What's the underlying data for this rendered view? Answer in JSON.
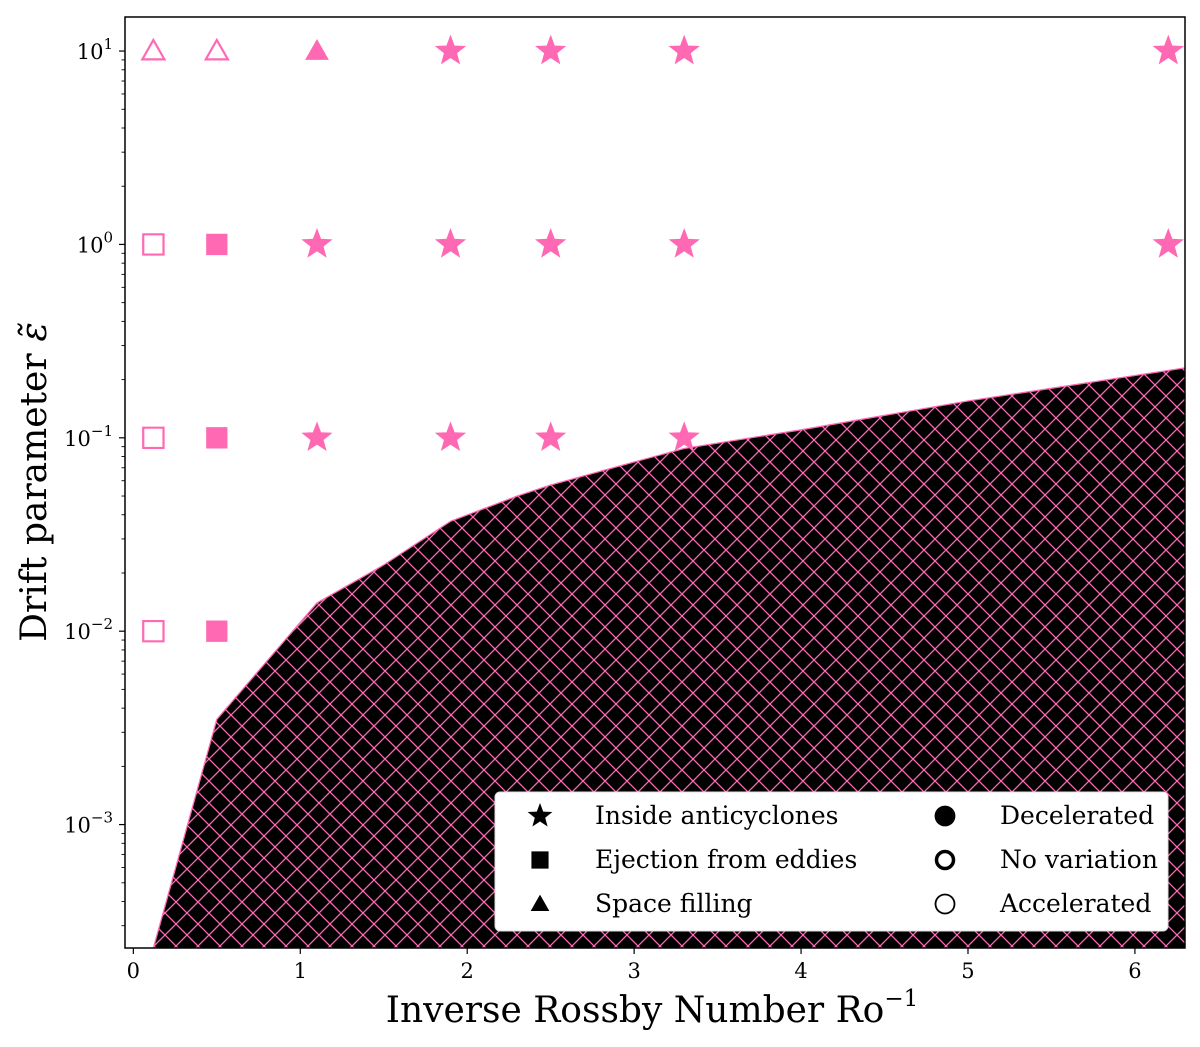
{
  "chart_data": {
    "type": "scatter",
    "xlabel": "Inverse Rossby Number Ro",
    "xlabel_sup": "−1",
    "ylabel": "Drift parameter",
    "ylabel_symbol": "ε̃",
    "xlim": [
      -0.05,
      6.3
    ],
    "ylim": [
      0.00023,
      15
    ],
    "y_scale": "log",
    "x_ticks": [
      0,
      1,
      2,
      3,
      4,
      5,
      6
    ],
    "y_ticks": [
      {
        "value": 0.001,
        "base": "10",
        "exp": "−3"
      },
      {
        "value": 0.01,
        "base": "10",
        "exp": "−2"
      },
      {
        "value": 0.1,
        "base": "10",
        "exp": "−1"
      },
      {
        "value": 1,
        "base": "10",
        "exp": "0"
      },
      {
        "value": 10,
        "base": "10",
        "exp": "1"
      }
    ],
    "grid": false,
    "marker_color": "#ff69b4",
    "region_fill": "#000000",
    "hatch_color": "#ff69b4",
    "region_boundary": [
      [
        0.12,
        0.00023
      ],
      [
        0.5,
        0.0035
      ],
      [
        1.1,
        0.014
      ],
      [
        1.5,
        0.022
      ],
      [
        1.9,
        0.037
      ],
      [
        2.3,
        0.05
      ],
      [
        2.5,
        0.057
      ],
      [
        3.0,
        0.075
      ],
      [
        3.3,
        0.088
      ],
      [
        4.0,
        0.11
      ],
      [
        5.0,
        0.155
      ],
      [
        6.3,
        0.23
      ]
    ],
    "series": [
      {
        "name": "Inside anticyclones",
        "marker": "star",
        "points": [
          {
            "x": 1.1,
            "y": 0.1,
            "fill": "filled"
          },
          {
            "x": 1.1,
            "y": 1,
            "fill": "filled"
          },
          {
            "x": 1.9,
            "y": 0.1,
            "fill": "filled"
          },
          {
            "x": 1.9,
            "y": 1,
            "fill": "filled"
          },
          {
            "x": 1.9,
            "y": 10,
            "fill": "filled"
          },
          {
            "x": 2.5,
            "y": 0.1,
            "fill": "filled"
          },
          {
            "x": 2.5,
            "y": 1,
            "fill": "filled"
          },
          {
            "x": 2.5,
            "y": 10,
            "fill": "filled"
          },
          {
            "x": 3.3,
            "y": 0.1,
            "fill": "filled"
          },
          {
            "x": 3.3,
            "y": 1,
            "fill": "filled"
          },
          {
            "x": 3.3,
            "y": 10,
            "fill": "filled"
          },
          {
            "x": 6.2,
            "y": 1,
            "fill": "filled"
          },
          {
            "x": 6.2,
            "y": 10,
            "fill": "filled"
          }
        ]
      },
      {
        "name": "Ejection from eddies",
        "marker": "square",
        "points": [
          {
            "x": 0.12,
            "y": 0.01,
            "fill": "open"
          },
          {
            "x": 0.12,
            "y": 0.1,
            "fill": "open"
          },
          {
            "x": 0.12,
            "y": 1,
            "fill": "open"
          },
          {
            "x": 0.5,
            "y": 0.01,
            "fill": "filled"
          },
          {
            "x": 0.5,
            "y": 0.1,
            "fill": "filled"
          },
          {
            "x": 0.5,
            "y": 1,
            "fill": "filled"
          }
        ]
      },
      {
        "name": "Space filling",
        "marker": "triangle",
        "points": [
          {
            "x": 0.12,
            "y": 10,
            "fill": "open"
          },
          {
            "x": 0.5,
            "y": 10,
            "fill": "open"
          },
          {
            "x": 1.1,
            "y": 10,
            "fill": "filled"
          }
        ]
      }
    ],
    "legend": {
      "placement": "lower-right",
      "columns": [
        [
          {
            "marker": "star",
            "fill": "filled",
            "label": "Inside anticyclones"
          },
          {
            "marker": "square",
            "fill": "filled",
            "label": "Ejection from eddies"
          },
          {
            "marker": "triangle",
            "fill": "filled",
            "label": "Space filling"
          }
        ],
        [
          {
            "marker": "circle",
            "fill": "filled",
            "label": "Decelerated"
          },
          {
            "marker": "circle",
            "fill": "thick-open",
            "label": "No variation"
          },
          {
            "marker": "circle",
            "fill": "open",
            "label": "Accelerated"
          }
        ]
      ]
    }
  }
}
